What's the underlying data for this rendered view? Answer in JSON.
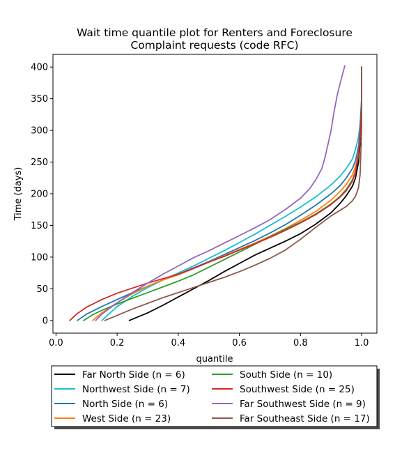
{
  "chart_data": {
    "type": "line",
    "title_lines": [
      "Wait time quantile plot for Renters and Foreclosure",
      "Complaint  requests (code RFC)"
    ],
    "xlabel": "quantile",
    "ylabel": "Time (days)",
    "xlim": [
      -0.01,
      1.05
    ],
    "ylim": [
      -20,
      420
    ],
    "xticks": [
      0.0,
      0.2,
      0.4,
      0.6,
      0.8,
      1.0
    ],
    "xtick_labels": [
      "0.0",
      "0.2",
      "0.4",
      "0.6",
      "0.8",
      "1.0"
    ],
    "yticks": [
      0,
      50,
      100,
      150,
      200,
      250,
      300,
      350,
      400
    ],
    "ytick_labels": [
      "0",
      "50",
      "100",
      "150",
      "200",
      "250",
      "300",
      "350",
      "400"
    ],
    "grid": false,
    "legend_position": "below plot, two columns",
    "series": [
      {
        "name": "Far North Side (n = 6)",
        "color": "#000000",
        "x": [
          0.24,
          0.3,
          0.35,
          0.4,
          0.45,
          0.5,
          0.55,
          0.6,
          0.65,
          0.7,
          0.75,
          0.8,
          0.85,
          0.9,
          0.93,
          0.95,
          0.97,
          0.98,
          0.99,
          0.995,
          1.0,
          1.0
        ],
        "y": [
          0,
          12,
          24,
          37,
          50,
          63,
          77,
          90,
          103,
          114,
          125,
          137,
          152,
          170,
          185,
          197,
          212,
          225,
          250,
          280,
          330,
          400
        ]
      },
      {
        "name": "Northwest Side (n = 7)",
        "color": "#17becf",
        "x": [
          0.15,
          0.2,
          0.25,
          0.3,
          0.35,
          0.4,
          0.45,
          0.5,
          0.55,
          0.6,
          0.65,
          0.7,
          0.75,
          0.8,
          0.85,
          0.9,
          0.93,
          0.95,
          0.97,
          0.98,
          0.99,
          0.995,
          1.0,
          1.0
        ],
        "y": [
          0,
          22,
          38,
          52,
          64,
          75,
          86,
          98,
          110,
          123,
          136,
          150,
          164,
          179,
          195,
          214,
          228,
          240,
          255,
          270,
          290,
          310,
          350,
          400
        ]
      },
      {
        "name": "North Side (n = 6)",
        "color": "#1f77b4",
        "x": [
          0.07,
          0.1,
          0.15,
          0.2,
          0.25,
          0.3,
          0.35,
          0.4,
          0.45,
          0.5,
          0.55,
          0.6,
          0.65,
          0.7,
          0.75,
          0.8,
          0.85,
          0.9,
          0.93,
          0.95,
          0.97,
          0.98,
          0.99,
          0.995,
          1.0,
          1.0
        ],
        "y": [
          0,
          10,
          22,
          33,
          44,
          54,
          64,
          73,
          83,
          93,
          104,
          115,
          126,
          138,
          151,
          166,
          182,
          200,
          213,
          225,
          240,
          252,
          275,
          300,
          350,
          400
        ]
      },
      {
        "name": "West Side (n = 23)",
        "color": "#ff7f0e",
        "x": [
          0.12,
          0.15,
          0.2,
          0.25,
          0.3,
          0.35,
          0.4,
          0.45,
          0.5,
          0.55,
          0.6,
          0.65,
          0.7,
          0.75,
          0.8,
          0.85,
          0.9,
          0.93,
          0.95,
          0.97,
          0.98,
          0.99,
          0.995,
          1.0,
          1.0
        ],
        "y": [
          0,
          12,
          28,
          42,
          54,
          64,
          72,
          82,
          92,
          102,
          112,
          122,
          133,
          145,
          158,
          172,
          190,
          204,
          215,
          230,
          243,
          265,
          290,
          340,
          400
        ]
      },
      {
        "name": "South Side (n = 10)",
        "color": "#2ca02c",
        "x": [
          0.09,
          0.12,
          0.15,
          0.2,
          0.25,
          0.3,
          0.35,
          0.4,
          0.45,
          0.5,
          0.55,
          0.6,
          0.65,
          0.7,
          0.75,
          0.8,
          0.85,
          0.9,
          0.93,
          0.95,
          0.97,
          0.98,
          0.99,
          0.995,
          1.0,
          1.0
        ],
        "y": [
          0,
          9,
          16,
          26,
          35,
          44,
          53,
          62,
          72,
          84,
          96,
          108,
          120,
          132,
          144,
          155,
          168,
          184,
          196,
          207,
          222,
          236,
          260,
          290,
          340,
          400
        ]
      },
      {
        "name": "Southwest Side (n = 25)",
        "color": "#d62728",
        "x": [
          0.045,
          0.07,
          0.1,
          0.15,
          0.2,
          0.25,
          0.3,
          0.35,
          0.4,
          0.45,
          0.5,
          0.55,
          0.6,
          0.65,
          0.7,
          0.75,
          0.8,
          0.85,
          0.9,
          0.93,
          0.95,
          0.97,
          0.98,
          0.99,
          0.995,
          1.0,
          1.0
        ],
        "y": [
          0,
          11,
          21,
          33,
          43,
          51,
          59,
          66,
          73,
          82,
          92,
          101,
          111,
          121,
          131,
          142,
          154,
          167,
          183,
          195,
          205,
          220,
          235,
          262,
          290,
          340,
          400
        ]
      },
      {
        "name": "Far Southwest Side (n = 9)",
        "color": "#9467bd",
        "x": [
          0.13,
          0.15,
          0.2,
          0.25,
          0.3,
          0.35,
          0.4,
          0.45,
          0.5,
          0.55,
          0.6,
          0.65,
          0.7,
          0.75,
          0.8,
          0.83,
          0.85,
          0.87,
          0.88,
          0.89,
          0.9,
          0.91,
          0.92,
          0.93,
          0.945
        ],
        "y": [
          0,
          10,
          28,
          44,
          59,
          73,
          86,
          99,
          110,
          122,
          134,
          146,
          159,
          175,
          193,
          208,
          222,
          240,
          257,
          278,
          300,
          330,
          355,
          375,
          402
        ]
      },
      {
        "name": "Far Southeast Side (n = 17)",
        "color": "#8c564b",
        "x": [
          0.16,
          0.2,
          0.25,
          0.3,
          0.35,
          0.4,
          0.45,
          0.5,
          0.55,
          0.6,
          0.65,
          0.7,
          0.75,
          0.8,
          0.85,
          0.9,
          0.95,
          0.97,
          0.98,
          0.99,
          0.995,
          1.0,
          1.0
        ],
        "y": [
          0,
          8,
          18,
          27,
          36,
          44,
          52,
          60,
          68,
          77,
          87,
          98,
          111,
          128,
          147,
          165,
          180,
          189,
          196,
          210,
          230,
          300,
          400
        ]
      }
    ]
  }
}
